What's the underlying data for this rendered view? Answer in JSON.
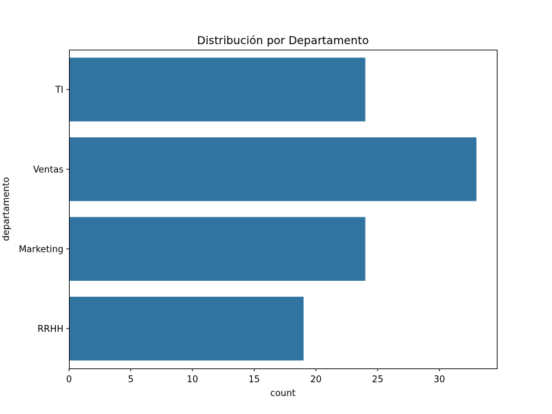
{
  "chart_data": {
    "type": "bar",
    "orientation": "horizontal",
    "title": "Distribución por Departamento",
    "xlabel": "count",
    "ylabel": "departamento",
    "categories": [
      "TI",
      "Ventas",
      "Marketing",
      "RRHH"
    ],
    "values": [
      24,
      33,
      24,
      19
    ],
    "xlim": [
      0,
      34.65
    ],
    "xticks": [
      0,
      5,
      10,
      15,
      20,
      25,
      30
    ],
    "bar_color": "#3274a1",
    "grid": false,
    "legend": "none"
  }
}
